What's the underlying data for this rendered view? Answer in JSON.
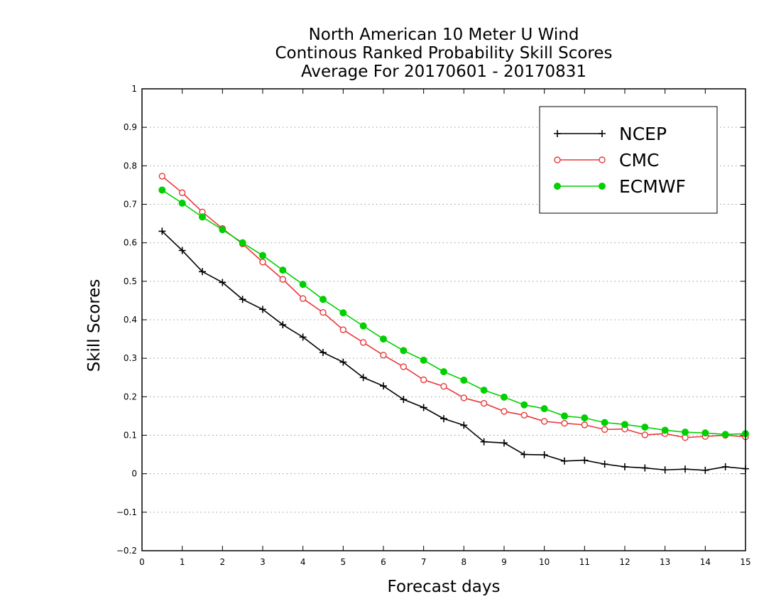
{
  "chart_data": {
    "type": "line",
    "title_lines": [
      "North American 10 Meter U Wind",
      "Continous Ranked Probability Skill Scores",
      "Average For 20170601 - 20170831"
    ],
    "xlabel": "Forecast days",
    "ylabel": "Skill Scores",
    "xlim": [
      0,
      15
    ],
    "ylim": [
      -0.2,
      1
    ],
    "x_ticks": [
      0,
      1,
      2,
      3,
      4,
      5,
      6,
      7,
      8,
      9,
      10,
      11,
      12,
      13,
      14,
      15
    ],
    "y_ticks": [
      -0.2,
      -0.1,
      0,
      0.1,
      0.2,
      0.3,
      0.4,
      0.5,
      0.6,
      0.7,
      0.8,
      0.9,
      1
    ],
    "x_tick_labels": [
      "0",
      "1",
      "2",
      "3",
      "4",
      "5",
      "6",
      "7",
      "8",
      "9",
      "10",
      "11",
      "12",
      "13",
      "14",
      "15"
    ],
    "y_tick_labels": [
      "−0.2",
      "−0.1",
      "0",
      "0.1",
      "0.2",
      "0.3",
      "0.4",
      "0.5",
      "0.6",
      "0.7",
      "0.8",
      "0.9",
      "1"
    ],
    "grid": "horizontal dotted",
    "legend_position": "top-right",
    "x": [
      0.5,
      1,
      1.5,
      2,
      2.5,
      3,
      3.5,
      4,
      4.5,
      5,
      5.5,
      6,
      6.5,
      7,
      7.5,
      8,
      8.5,
      9,
      9.5,
      10,
      10.5,
      11,
      11.5,
      12,
      12.5,
      13,
      13.5,
      14,
      14.5,
      15
    ],
    "series": [
      {
        "name": "NCEP",
        "color": "#000000",
        "marker": "plus",
        "values": [
          0.63,
          0.58,
          0.525,
          0.497,
          0.453,
          0.427,
          0.387,
          0.355,
          0.315,
          0.29,
          0.25,
          0.228,
          0.193,
          0.172,
          0.143,
          0.126,
          0.083,
          0.08,
          0.05,
          0.049,
          0.033,
          0.035,
          0.025,
          0.018,
          0.015,
          0.01,
          0.012,
          0.009,
          0.018,
          0.013
        ]
      },
      {
        "name": "CMC",
        "color": "#e8393b",
        "marker": "open-circle",
        "values": [
          0.773,
          0.73,
          0.68,
          0.637,
          0.597,
          0.55,
          0.505,
          0.455,
          0.419,
          0.374,
          0.341,
          0.308,
          0.278,
          0.244,
          0.227,
          0.197,
          0.183,
          0.162,
          0.152,
          0.136,
          0.131,
          0.127,
          0.115,
          0.116,
          0.101,
          0.104,
          0.094,
          0.097,
          0.1,
          0.096
        ]
      },
      {
        "name": "ECMWF",
        "color": "#00d000",
        "marker": "filled-circle",
        "values": [
          0.737,
          0.703,
          0.667,
          0.634,
          0.6,
          0.567,
          0.529,
          0.492,
          0.453,
          0.418,
          0.384,
          0.35,
          0.32,
          0.295,
          0.265,
          0.243,
          0.217,
          0.199,
          0.179,
          0.169,
          0.15,
          0.145,
          0.133,
          0.128,
          0.121,
          0.113,
          0.108,
          0.106,
          0.102,
          0.104
        ]
      }
    ]
  }
}
